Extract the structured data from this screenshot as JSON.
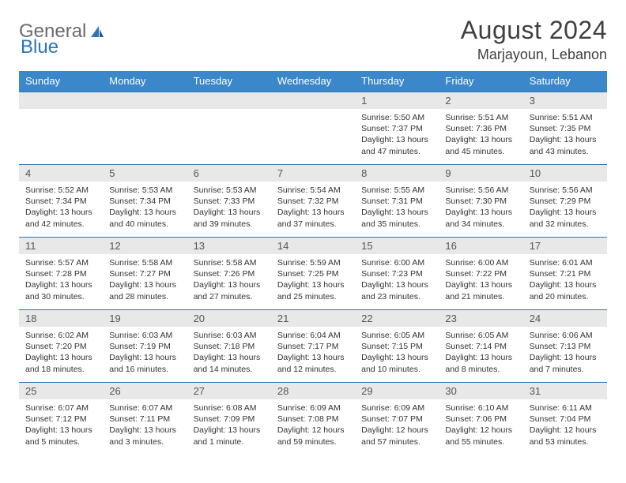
{
  "brand": {
    "part1": "General",
    "part2": "Blue"
  },
  "title": "August 2024",
  "location": "Marjayoun, Lebanon",
  "colors": {
    "header_bg": "#3a87c9",
    "header_text": "#ffffff",
    "band_bg": "#e8e8e8",
    "band_border": "#2e75b6",
    "body_text": "#333333",
    "title_text": "#404040",
    "logo_gray": "#6b6b6b",
    "logo_blue": "#2e75b6"
  },
  "weekdays": [
    "Sunday",
    "Monday",
    "Tuesday",
    "Wednesday",
    "Thursday",
    "Friday",
    "Saturday"
  ],
  "weeks": [
    [
      {
        "blank": true
      },
      {
        "blank": true
      },
      {
        "blank": true
      },
      {
        "blank": true
      },
      {
        "n": "1",
        "sr": "5:50 AM",
        "ss": "7:37 PM",
        "dl": "13 hours and 47 minutes."
      },
      {
        "n": "2",
        "sr": "5:51 AM",
        "ss": "7:36 PM",
        "dl": "13 hours and 45 minutes."
      },
      {
        "n": "3",
        "sr": "5:51 AM",
        "ss": "7:35 PM",
        "dl": "13 hours and 43 minutes."
      }
    ],
    [
      {
        "n": "4",
        "sr": "5:52 AM",
        "ss": "7:34 PM",
        "dl": "13 hours and 42 minutes."
      },
      {
        "n": "5",
        "sr": "5:53 AM",
        "ss": "7:34 PM",
        "dl": "13 hours and 40 minutes."
      },
      {
        "n": "6",
        "sr": "5:53 AM",
        "ss": "7:33 PM",
        "dl": "13 hours and 39 minutes."
      },
      {
        "n": "7",
        "sr": "5:54 AM",
        "ss": "7:32 PM",
        "dl": "13 hours and 37 minutes."
      },
      {
        "n": "8",
        "sr": "5:55 AM",
        "ss": "7:31 PM",
        "dl": "13 hours and 35 minutes."
      },
      {
        "n": "9",
        "sr": "5:56 AM",
        "ss": "7:30 PM",
        "dl": "13 hours and 34 minutes."
      },
      {
        "n": "10",
        "sr": "5:56 AM",
        "ss": "7:29 PM",
        "dl": "13 hours and 32 minutes."
      }
    ],
    [
      {
        "n": "11",
        "sr": "5:57 AM",
        "ss": "7:28 PM",
        "dl": "13 hours and 30 minutes."
      },
      {
        "n": "12",
        "sr": "5:58 AM",
        "ss": "7:27 PM",
        "dl": "13 hours and 28 minutes."
      },
      {
        "n": "13",
        "sr": "5:58 AM",
        "ss": "7:26 PM",
        "dl": "13 hours and 27 minutes."
      },
      {
        "n": "14",
        "sr": "5:59 AM",
        "ss": "7:25 PM",
        "dl": "13 hours and 25 minutes."
      },
      {
        "n": "15",
        "sr": "6:00 AM",
        "ss": "7:23 PM",
        "dl": "13 hours and 23 minutes."
      },
      {
        "n": "16",
        "sr": "6:00 AM",
        "ss": "7:22 PM",
        "dl": "13 hours and 21 minutes."
      },
      {
        "n": "17",
        "sr": "6:01 AM",
        "ss": "7:21 PM",
        "dl": "13 hours and 20 minutes."
      }
    ],
    [
      {
        "n": "18",
        "sr": "6:02 AM",
        "ss": "7:20 PM",
        "dl": "13 hours and 18 minutes."
      },
      {
        "n": "19",
        "sr": "6:03 AM",
        "ss": "7:19 PM",
        "dl": "13 hours and 16 minutes."
      },
      {
        "n": "20",
        "sr": "6:03 AM",
        "ss": "7:18 PM",
        "dl": "13 hours and 14 minutes."
      },
      {
        "n": "21",
        "sr": "6:04 AM",
        "ss": "7:17 PM",
        "dl": "13 hours and 12 minutes."
      },
      {
        "n": "22",
        "sr": "6:05 AM",
        "ss": "7:15 PM",
        "dl": "13 hours and 10 minutes."
      },
      {
        "n": "23",
        "sr": "6:05 AM",
        "ss": "7:14 PM",
        "dl": "13 hours and 8 minutes."
      },
      {
        "n": "24",
        "sr": "6:06 AM",
        "ss": "7:13 PM",
        "dl": "13 hours and 7 minutes."
      }
    ],
    [
      {
        "n": "25",
        "sr": "6:07 AM",
        "ss": "7:12 PM",
        "dl": "13 hours and 5 minutes."
      },
      {
        "n": "26",
        "sr": "6:07 AM",
        "ss": "7:11 PM",
        "dl": "13 hours and 3 minutes."
      },
      {
        "n": "27",
        "sr": "6:08 AM",
        "ss": "7:09 PM",
        "dl": "13 hours and 1 minute."
      },
      {
        "n": "28",
        "sr": "6:09 AM",
        "ss": "7:08 PM",
        "dl": "12 hours and 59 minutes."
      },
      {
        "n": "29",
        "sr": "6:09 AM",
        "ss": "7:07 PM",
        "dl": "12 hours and 57 minutes."
      },
      {
        "n": "30",
        "sr": "6:10 AM",
        "ss": "7:06 PM",
        "dl": "12 hours and 55 minutes."
      },
      {
        "n": "31",
        "sr": "6:11 AM",
        "ss": "7:04 PM",
        "dl": "12 hours and 53 minutes."
      }
    ]
  ],
  "labels": {
    "sunrise": "Sunrise:",
    "sunset": "Sunset:",
    "daylight": "Daylight:"
  }
}
